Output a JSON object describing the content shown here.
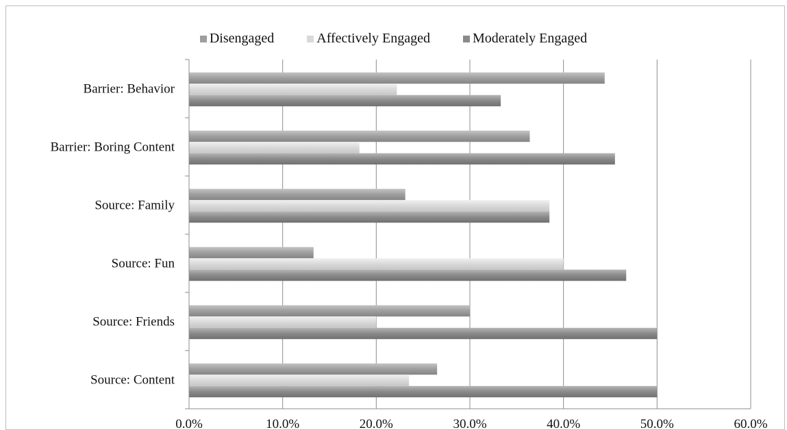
{
  "chart_data": {
    "type": "bar",
    "orientation": "horizontal",
    "categories": [
      "Barrier: Behavior",
      "Barrier: Boring Content",
      "Source: Family",
      "Source: Fun",
      "Source: Friends",
      "Source: Content"
    ],
    "series": [
      {
        "name": "Disengaged",
        "color": "#9e9e9e",
        "values": [
          0.444,
          0.364,
          0.231,
          0.133,
          0.3,
          0.265
        ]
      },
      {
        "name": "Affectively Engaged",
        "color": "#d9d9d9",
        "values": [
          0.222,
          0.182,
          0.385,
          0.4,
          0.2,
          0.235
        ]
      },
      {
        "name": "Moderately Engaged",
        "color": "#8a8a8a",
        "values": [
          0.333,
          0.455,
          0.385,
          0.467,
          0.5,
          0.5
        ]
      }
    ],
    "xlim": [
      0,
      0.6
    ],
    "xticks": [
      "0.0%",
      "10.0%",
      "20.0%",
      "30.0%",
      "40.0%",
      "50.0%",
      "60.0%"
    ],
    "grid": "vertical",
    "legend_position": "top"
  }
}
